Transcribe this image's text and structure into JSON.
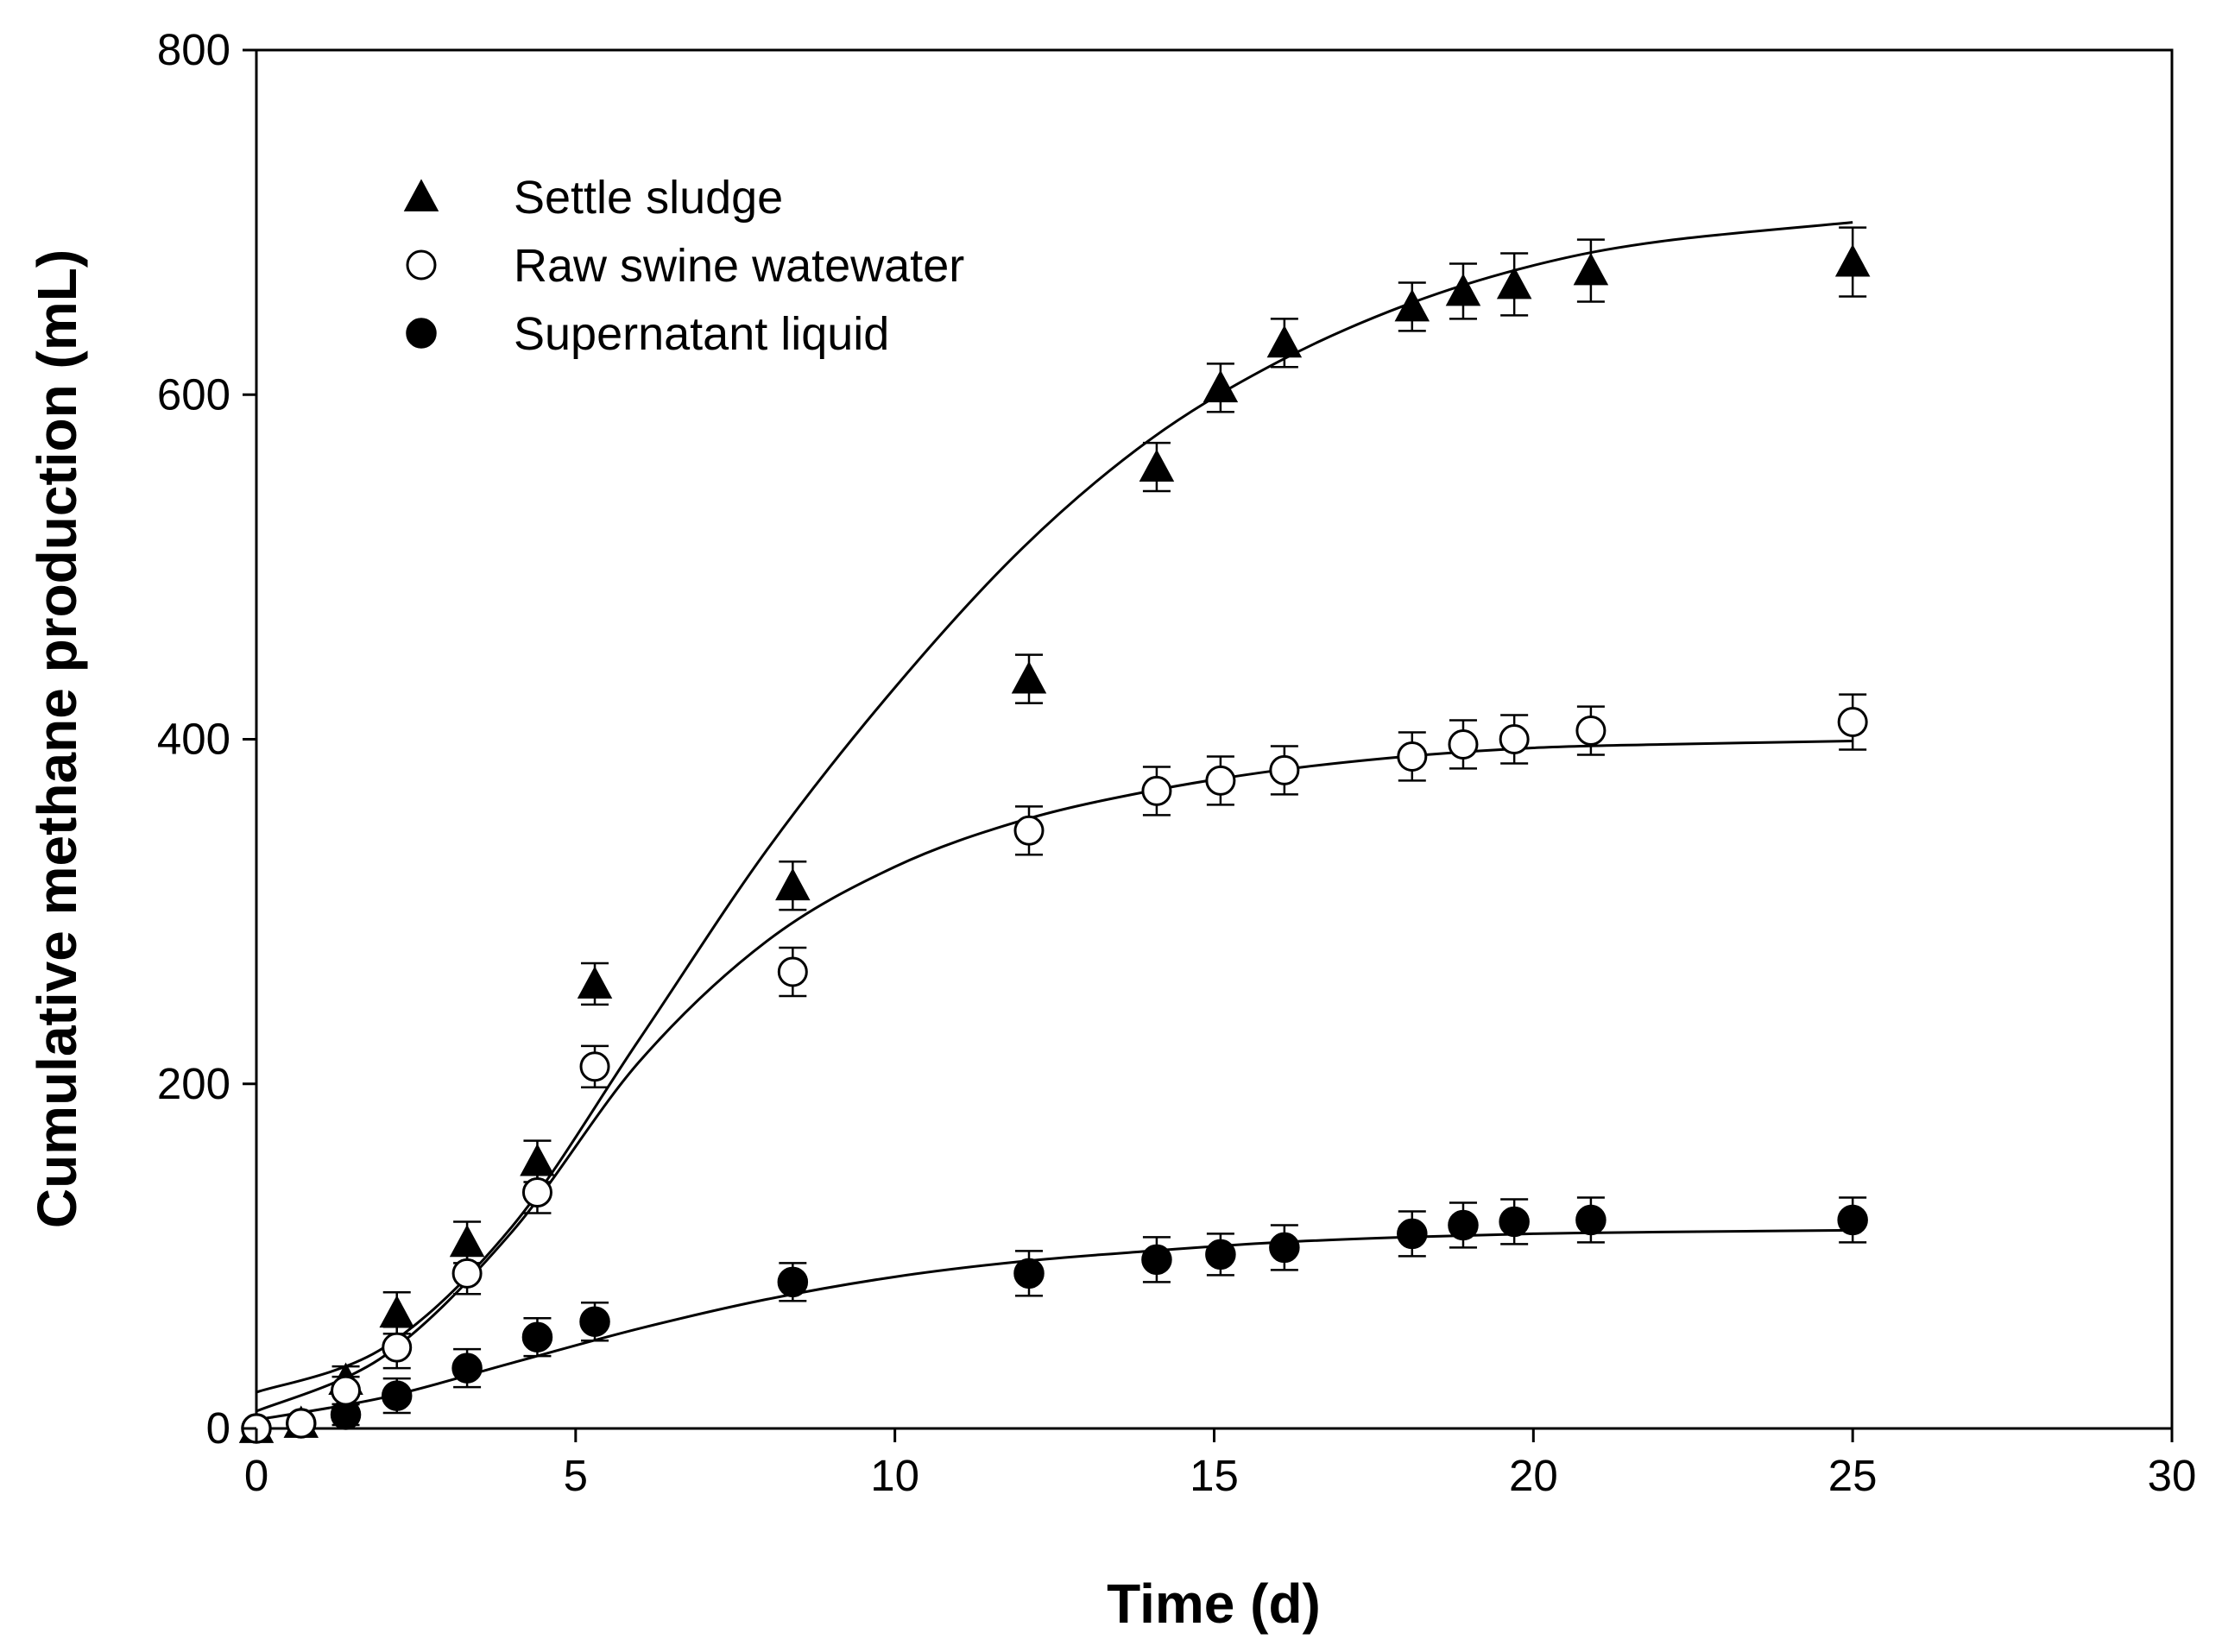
{
  "chart_data": {
    "type": "scatter",
    "title": "",
    "xlabel": "Time (d)",
    "ylabel": "Cumulative methane production (mL)",
    "xlim": [
      0,
      30
    ],
    "ylim": [
      0,
      800
    ],
    "xticks": [
      0,
      5,
      10,
      15,
      20,
      25,
      30
    ],
    "yticks": [
      0,
      200,
      400,
      600,
      800
    ],
    "grid": false,
    "legend_position": "top-left",
    "series": [
      {
        "name": "Settle sludge",
        "marker": "filled-triangle",
        "color": "#000000",
        "x": [
          0,
          0.7,
          1.4,
          2.2,
          3.3,
          4.4,
          5.3,
          8.4,
          12.1,
          14.1,
          15.1,
          16.1,
          18.1,
          18.9,
          19.7,
          20.9,
          25.0
        ],
        "y": [
          0,
          3,
          28,
          67,
          108,
          155,
          258,
          315,
          435,
          558,
          604,
          630,
          651,
          660,
          664,
          672,
          677
        ],
        "err": [
          3,
          3,
          8,
          12,
          12,
          12,
          12,
          14,
          14,
          14,
          14,
          14,
          14,
          16,
          18,
          18,
          20
        ],
        "fit": [
          [
            0,
            21
          ],
          [
            2,
            47
          ],
          [
            4,
            117
          ],
          [
            6,
            226
          ],
          [
            8,
            336
          ],
          [
            10,
            430
          ],
          [
            12,
            511
          ],
          [
            14,
            574
          ],
          [
            16,
            619
          ],
          [
            18,
            652
          ],
          [
            20,
            675
          ],
          [
            22,
            689
          ],
          [
            25,
            700
          ]
        ]
      },
      {
        "name": "Raw swine watewater",
        "marker": "open-circle",
        "color": "#000000",
        "x": [
          0,
          0.7,
          1.4,
          2.2,
          3.3,
          4.4,
          5.3,
          8.4,
          12.1,
          14.1,
          15.1,
          16.1,
          18.1,
          18.9,
          19.7,
          20.9,
          25.0
        ],
        "y": [
          0,
          3,
          22,
          47,
          90,
          137,
          210,
          265,
          347,
          370,
          376,
          382,
          390,
          397,
          400,
          405,
          410
        ],
        "err": [
          3,
          3,
          8,
          12,
          12,
          12,
          12,
          14,
          14,
          14,
          14,
          14,
          14,
          14,
          14,
          14,
          16
        ],
        "fit": [
          [
            0,
            10
          ],
          [
            2,
            42
          ],
          [
            4,
            114
          ],
          [
            6,
            213
          ],
          [
            8,
            283
          ],
          [
            10,
            326
          ],
          [
            12,
            353
          ],
          [
            14,
            370
          ],
          [
            16,
            382
          ],
          [
            18,
            390
          ],
          [
            20,
            395
          ],
          [
            22,
            397
          ],
          [
            25,
            399
          ]
        ]
      },
      {
        "name": "Supernatant liquid",
        "marker": "filled-circle",
        "color": "#000000",
        "x": [
          0,
          0.7,
          1.4,
          2.2,
          3.3,
          4.4,
          5.3,
          8.4,
          12.1,
          14.1,
          15.1,
          16.1,
          18.1,
          18.9,
          19.7,
          20.9,
          25.0
        ],
        "y": [
          0,
          3,
          8,
          19,
          35,
          53,
          62,
          85,
          90,
          98,
          101,
          105,
          113,
          118,
          120,
          121,
          121
        ],
        "err": [
          3,
          3,
          6,
          10,
          11,
          11,
          11,
          11,
          13,
          13,
          12,
          13,
          13,
          13,
          13,
          13,
          13
        ],
        "fit": [
          [
            0,
            5
          ],
          [
            2,
            18
          ],
          [
            4,
            38
          ],
          [
            6,
            58
          ],
          [
            8,
            75
          ],
          [
            10,
            88
          ],
          [
            12,
            97
          ],
          [
            14,
            103
          ],
          [
            16,
            108
          ],
          [
            18,
            111
          ],
          [
            20,
            113
          ],
          [
            22,
            114
          ],
          [
            25,
            115
          ]
        ]
      }
    ]
  }
}
